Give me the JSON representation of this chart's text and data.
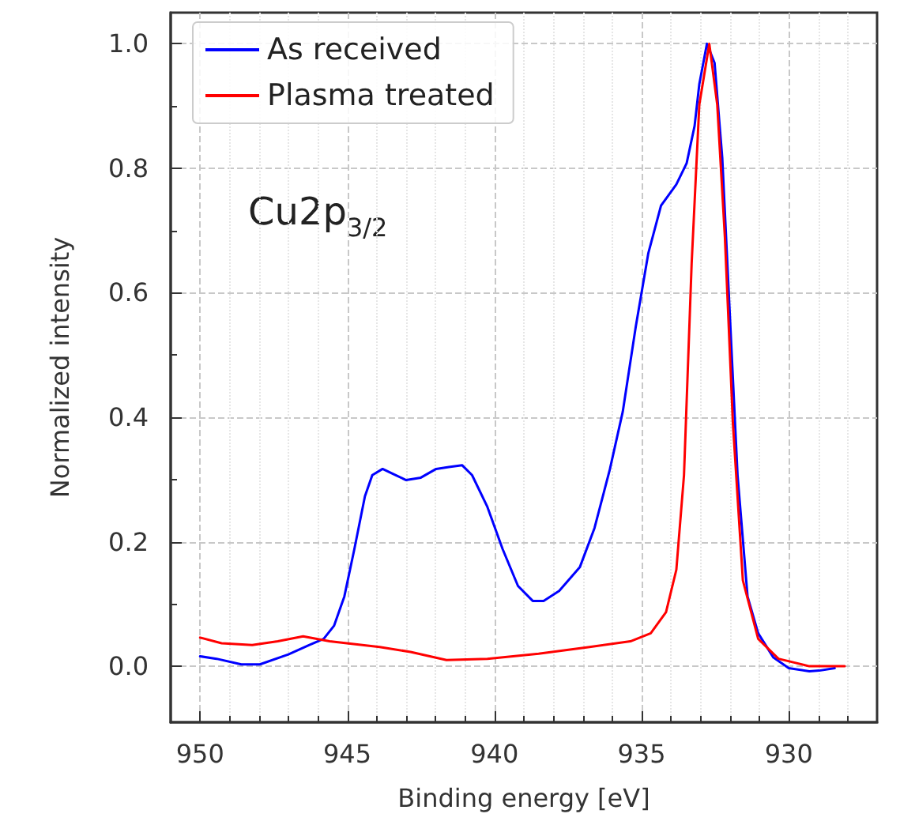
{
  "chart_data": {
    "type": "line",
    "xlabel": "Binding energy [eV]",
    "ylabel": "Normalized intensity",
    "annotations": [
      "Cu2p$_{3/2}$"
    ],
    "xlim": [
      951,
      927
    ],
    "xticks": [
      950,
      945,
      940,
      935,
      930
    ],
    "ylim": [
      -0.09,
      1.05
    ],
    "yticks": [
      {
        "value": 0,
        "label": "0.0"
      },
      {
        "value": 0.2,
        "label": "0.2"
      },
      {
        "value": 0.4,
        "label": "0.4"
      },
      {
        "value": 0.6,
        "label": "0.6"
      },
      {
        "value": 0.8,
        "label": "0.8"
      },
      {
        "value": 1,
        "label": "1.0"
      }
    ],
    "grid": true,
    "legend": "top left",
    "marker": "none",
    "line_style": "solid",
    "series": [
      {
        "name": "As received",
        "color": "#0000ff",
        "x": [
          950,
          949.44,
          948.6,
          947.97,
          947.0,
          946.3,
          945.8,
          945.45,
          945.1,
          944.76,
          944.4,
          944.15,
          943.8,
          943.45,
          943.0,
          942.5,
          941.98,
          941.55,
          941.1,
          940.76,
          940.24,
          939.72,
          939.2,
          938.7,
          938.33,
          937.8,
          937.1,
          936.6,
          936.08,
          935.64,
          935.2,
          934.77,
          934.34,
          933.82,
          933.47,
          933.2,
          933.04,
          932.78,
          932.52,
          932.26,
          932.0,
          931.74,
          931.4,
          931.04,
          930.52,
          930.0,
          929.3,
          928.96,
          928.44
        ],
        "values": [
          0.016,
          0.012,
          0.003,
          0.003,
          0.019,
          0.034,
          0.044,
          0.065,
          0.112,
          0.188,
          0.273,
          0.307,
          0.317,
          0.309,
          0.299,
          0.303,
          0.317,
          0.32,
          0.323,
          0.307,
          0.256,
          0.188,
          0.129,
          0.105,
          0.105,
          0.121,
          0.159,
          0.222,
          0.316,
          0.409,
          0.545,
          0.664,
          0.74,
          0.774,
          0.808,
          0.868,
          0.935,
          1.0,
          0.969,
          0.817,
          0.562,
          0.307,
          0.112,
          0.053,
          0.014,
          -0.003,
          -0.008,
          -0.007,
          -0.003
        ]
      },
      {
        "name": "Plasma treated",
        "color": "#ff0000",
        "x": [
          950,
          949.27,
          948.23,
          947.36,
          946.5,
          945.6,
          943.9,
          942.85,
          941.63,
          940.24,
          938.5,
          936.77,
          935.38,
          934.69,
          934.17,
          933.82,
          933.56,
          933.3,
          933.04,
          932.7,
          932.43,
          932.17,
          931.9,
          931.56,
          931.04,
          930.35,
          929.3,
          928.1
        ],
        "values": [
          0.046,
          0.037,
          0.034,
          0.04,
          0.048,
          0.04,
          0.031,
          0.023,
          0.01,
          0.012,
          0.02,
          0.031,
          0.04,
          0.053,
          0.087,
          0.155,
          0.307,
          0.647,
          0.902,
          1.0,
          0.902,
          0.689,
          0.392,
          0.138,
          0.044,
          0.012,
          0.0,
          0.0
        ]
      }
    ]
  }
}
